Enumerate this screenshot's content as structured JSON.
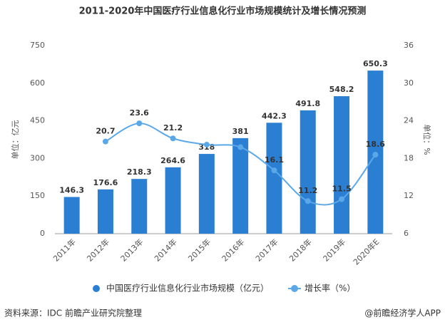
{
  "chart_data": {
    "type": "bar-line",
    "title": "2011-2020年中国医疗行业信息化行业市场规模统计及增长情况预测",
    "y_label": "单位：亿元",
    "y2_label": "单位：%",
    "categories": [
      "2011年",
      "2012年",
      "2013年",
      "2014年",
      "2015年",
      "2016年",
      "2017年",
      "2018年",
      "2019年",
      "2020年E"
    ],
    "series": [
      {
        "name": "中国医疗行业信息化行业市场规模（亿元）",
        "type": "bar",
        "color": "#2b7fd3",
        "values": [
          146.3,
          176.6,
          218.3,
          264.6,
          318,
          381,
          442.3,
          491.8,
          548.2,
          650.3
        ]
      },
      {
        "name": "增长率（%）",
        "type": "line",
        "axis": "y2",
        "color": "#5ba8e8",
        "values": [
          null,
          20.7,
          23.6,
          21.2,
          20.2,
          19.8,
          16.1,
          11.2,
          11.5,
          18.6
        ],
        "value_labels": [
          null,
          "20.7",
          "23.6",
          "21.2",
          null,
          null,
          "16.1",
          "11.2",
          "11.5",
          "18.6"
        ]
      }
    ],
    "ylim": [
      0,
      750
    ],
    "yticks": [
      0,
      150,
      300,
      450,
      600,
      750
    ],
    "y2lim": [
      6,
      36
    ],
    "y2ticks": [
      6,
      12,
      18,
      24,
      30,
      36
    ],
    "source": "资料来源：IDC 前瞻产业研究院整理",
    "credit": "@前瞻经济学人APP"
  }
}
